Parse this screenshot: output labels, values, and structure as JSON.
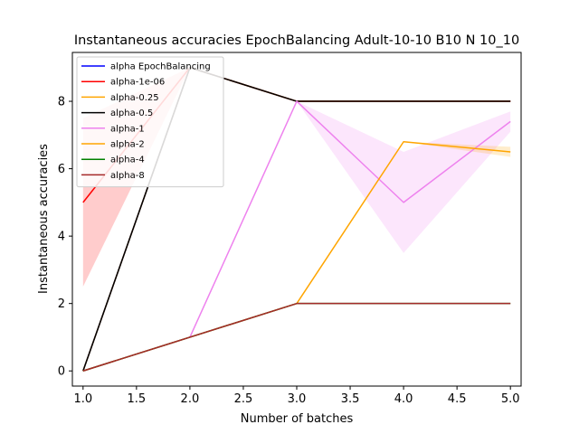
{
  "chart_data": {
    "type": "line",
    "title": "Instantaneous accuracies EpochBalancing Adult-10-10 B10 N 10_10",
    "xlabel": "Number of batches",
    "ylabel": "Instantaneous accuracies",
    "xlim": [
      0.9,
      5.1
    ],
    "ylim": [
      -0.45,
      9.45
    ],
    "xticks": [
      1.0,
      1.5,
      2.0,
      2.5,
      3.0,
      3.5,
      4.0,
      4.5,
      5.0
    ],
    "xtick_labels": [
      "1.0",
      "1.5",
      "2.0",
      "2.5",
      "3.0",
      "3.5",
      "4.0",
      "4.5",
      "5.0"
    ],
    "yticks": [
      0,
      2,
      4,
      6,
      8
    ],
    "ytick_labels": [
      "0",
      "2",
      "4",
      "6",
      "8"
    ],
    "grid": false,
    "legend_position": "top-left",
    "x": [
      1,
      2,
      3,
      4,
      5
    ],
    "series": [
      {
        "name": "alpha EpochBalancing",
        "color": "#0000ff",
        "values": [
          0,
          9,
          8,
          8,
          8
        ],
        "band": null
      },
      {
        "name": "alpha-1e-06",
        "color": "#ff0000",
        "values": [
          5,
          9,
          8,
          8,
          8
        ],
        "band": {
          "lower": [
            2.5,
            9,
            8,
            8,
            8
          ],
          "upper": [
            7.5,
            9,
            8,
            8,
            8
          ]
        }
      },
      {
        "name": "alpha-0.25",
        "color": "#ffa500",
        "values": [
          0,
          9,
          8,
          8,
          8
        ],
        "band": null
      },
      {
        "name": "alpha-0.5",
        "color": "#000000",
        "values": [
          0,
          9,
          8,
          8,
          8
        ],
        "band": null
      },
      {
        "name": "alpha-1",
        "color": "#ee82ee",
        "values": [
          0,
          1,
          8,
          5,
          7.4
        ],
        "band": {
          "lower": [
            0,
            1,
            8,
            3.5,
            7.1
          ],
          "upper": [
            0,
            1,
            8,
            6.5,
            7.7
          ]
        }
      },
      {
        "name": "alpha-2",
        "color": "#ffa500",
        "values": [
          0,
          1,
          2,
          6.8,
          6.5
        ],
        "band": {
          "lower": [
            0,
            1,
            2,
            6.8,
            6.35
          ],
          "upper": [
            0,
            1,
            2,
            6.8,
            6.65
          ]
        }
      },
      {
        "name": "alpha-4",
        "color": "#008000",
        "values": [
          0,
          1,
          2,
          2,
          2
        ],
        "band": null
      },
      {
        "name": "alpha-8",
        "color": "#a52a2a",
        "values": [
          0,
          1,
          2,
          2,
          2
        ],
        "band": null
      }
    ]
  }
}
